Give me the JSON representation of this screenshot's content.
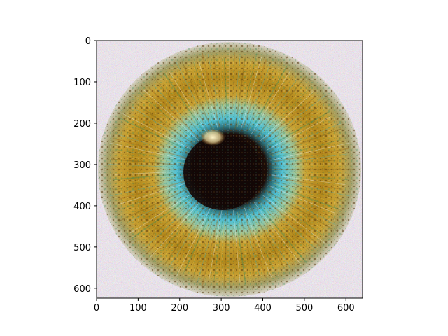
{
  "figure": {
    "image_description_colors": {
      "background_noise": "#f4eef2",
      "outer_ring": "#c9a233",
      "mid_ring": "#b48a1c",
      "inner_ring": "#4fc2d8",
      "pupil": "#120806",
      "highlight": "#f7e2a0",
      "dark_spots": "#5a3a12"
    },
    "axes": {
      "x": {
        "ticks": [
          "0",
          "100",
          "200",
          "300",
          "400",
          "500",
          "600"
        ],
        "tick_values": [
          0,
          100,
          200,
          300,
          400,
          500,
          600
        ],
        "range": [
          0,
          640
        ]
      },
      "y": {
        "ticks": [
          "0",
          "100",
          "200",
          "300",
          "400",
          "500",
          "600"
        ],
        "tick_values": [
          0,
          100,
          200,
          300,
          400,
          500,
          600
        ],
        "range": [
          0,
          624
        ]
      }
    }
  }
}
